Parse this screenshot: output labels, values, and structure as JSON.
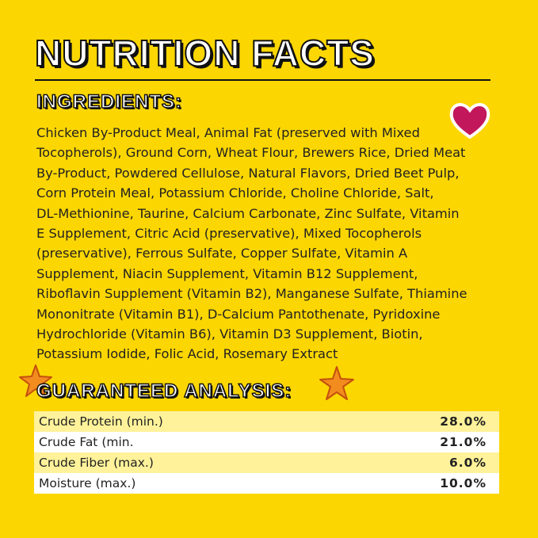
{
  "header": {
    "title": "NUTRITION FACTS"
  },
  "ingredients": {
    "heading": "INGREDIENTS:",
    "lines": [
      "Chicken By-Product Meal, Animal Fat (preserved with Mixed",
      "Tocopherols), Ground Corn, Wheat Flour, Brewers Rice, Dried Meat",
      "By-Product, Powdered Cellulose, Natural Flavors, Dried Beet Pulp,",
      "Corn Protein Meal, Potassium Chloride, Choline Chloride, Salt,",
      "DL-Methionine, Taurine, Calcium Carbonate, Zinc Sulfate, Vitamin",
      "E Supplement, Citric Acid (preservative), Mixed Tocopherols",
      "(preservative), Ferrous Sulfate, Copper Sulfate, Vitamin A",
      "Supplement, Niacin Supplement, Vitamin B12 Supplement,",
      "Riboflavin Supplement (Vitamin B2), Manganese Sulfate, Thiamine",
      "Mononitrate (Vitamin B1), D-Calcium Pantothenate, Pyridoxine",
      "Hydrochloride (Vitamin B6), Vitamin D3 Supplement, Biotin,",
      "Potassium Iodide, Folic Acid, Rosemary Extract"
    ]
  },
  "analysis": {
    "heading": "GUARANTEED ANALYSIS:",
    "rows": [
      [
        "Crude Protein (min.)",
        "28.0%"
      ],
      [
        "Crude Fat (min.",
        "21.0%"
      ],
      [
        "Crude Fiber (max.)",
        "6.0%"
      ],
      [
        "Moisture (max.)",
        "10.0%"
      ]
    ]
  }
}
